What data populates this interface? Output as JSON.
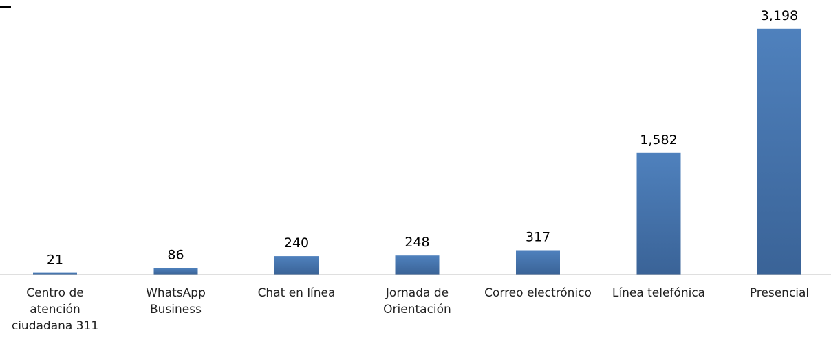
{
  "chart_data": {
    "type": "bar",
    "categories": [
      "Centro de\natención\nciudadana 311",
      "WhatsApp\nBusiness",
      "Chat en línea",
      "Jornada de\nOrientación",
      "Correo electrónico",
      "Línea telefónica",
      "Presencial"
    ],
    "values": [
      21,
      86,
      240,
      248,
      317,
      1582,
      3198
    ],
    "value_labels": [
      "21",
      "86",
      "240",
      "248",
      "317",
      "1,582",
      "3,198"
    ],
    "ylim": [
      0,
      3500
    ],
    "grid": false,
    "colors": {
      "bar_top": "#4f81bd",
      "bar_bottom": "#3a6397",
      "axis": "#bfbfbf"
    }
  }
}
